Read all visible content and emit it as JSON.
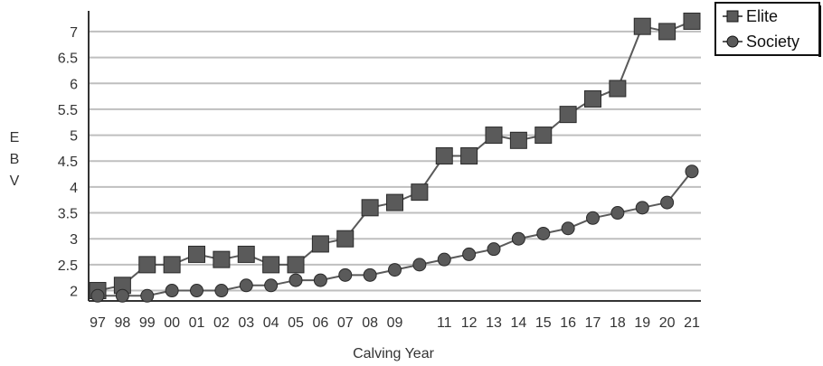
{
  "chart_data": {
    "type": "line",
    "xlabel": "Calving Year",
    "ylabel": "EBV",
    "x": [
      "97",
      "98",
      "99",
      "00",
      "01",
      "02",
      "03",
      "04",
      "05",
      "06",
      "07",
      "08",
      "09",
      "10",
      "11",
      "12",
      "13",
      "14",
      "15",
      "16",
      "17",
      "18",
      "19",
      "20",
      "21"
    ],
    "x_tick_labels": [
      "97",
      "98",
      "99",
      "00",
      "01",
      "02",
      "03",
      "04",
      "05",
      "06",
      "07",
      "08",
      "09",
      "",
      "11",
      "12",
      "13",
      "14",
      "15",
      "16",
      "17",
      "18",
      "19",
      "20",
      "21"
    ],
    "y_ticks": [
      "2",
      "2.5",
      "3",
      "3.5",
      "4",
      "4.5",
      "5",
      "5.5",
      "6",
      "6.5",
      "7"
    ],
    "ylim": [
      1.8,
      7.4
    ],
    "grid": true,
    "legend_position": "top-right",
    "series": [
      {
        "name": "Elite",
        "marker": "square",
        "values": [
          2.0,
          2.1,
          2.5,
          2.5,
          2.7,
          2.6,
          2.7,
          2.5,
          2.5,
          2.9,
          3.0,
          3.6,
          3.7,
          3.9,
          4.6,
          4.6,
          5.0,
          4.9,
          5.0,
          5.4,
          5.7,
          5.9,
          7.1,
          7.0,
          7.2
        ]
      },
      {
        "name": "Society",
        "marker": "circle",
        "values": [
          1.9,
          1.9,
          1.9,
          2.0,
          2.0,
          2.0,
          2.1,
          2.1,
          2.2,
          2.2,
          2.3,
          2.3,
          2.4,
          2.5,
          2.6,
          2.7,
          2.8,
          3.0,
          3.1,
          3.2,
          3.4,
          3.5,
          3.6,
          3.7,
          4.3
        ]
      }
    ],
    "colors": {
      "marker_fill": "#5a5a5a",
      "line": "#5a5a5a",
      "grid": "#bfbfbf",
      "axis": "#333333"
    }
  }
}
